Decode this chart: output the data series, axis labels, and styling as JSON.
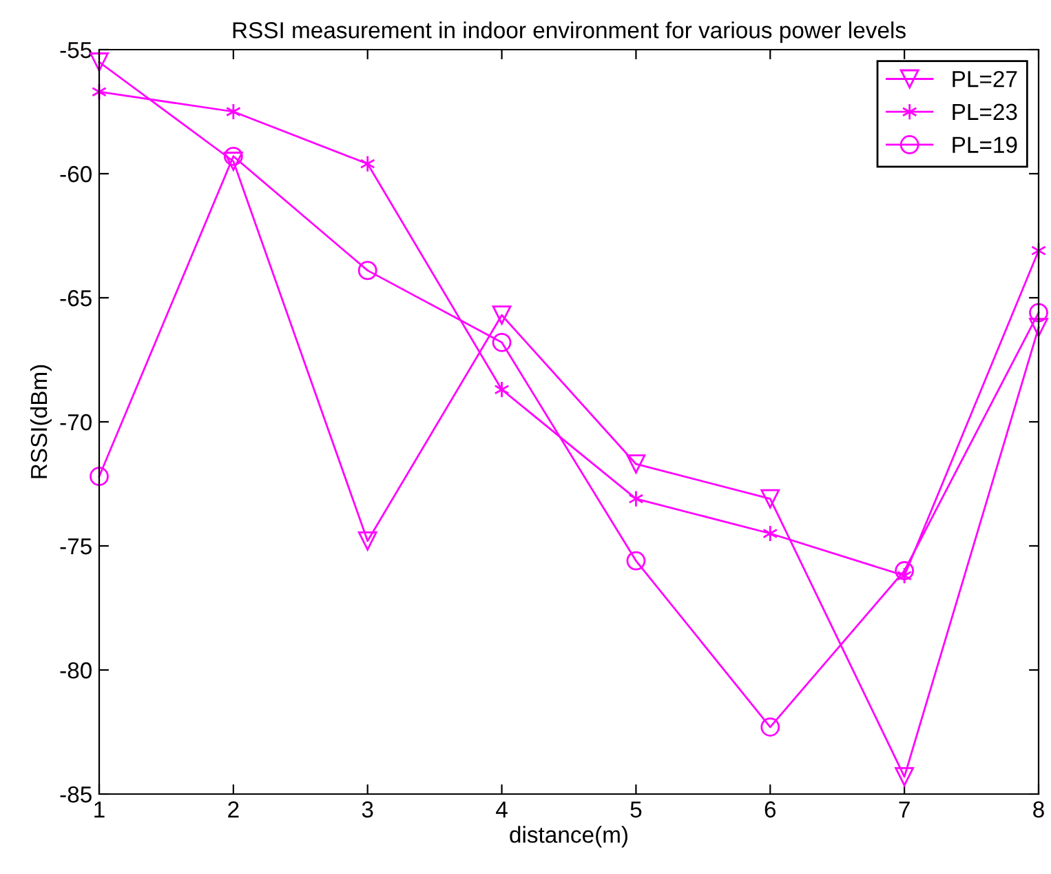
{
  "chart_data": {
    "type": "line",
    "title": "RSSI measurement in indoor environment for various power levels",
    "xlabel": "distance(m)",
    "ylabel": "RSSI(dBm)",
    "x": [
      1,
      2,
      3,
      4,
      5,
      6,
      7,
      8
    ],
    "xlim": [
      1,
      8
    ],
    "xticks": [
      1,
      2,
      3,
      4,
      5,
      6,
      7,
      8
    ],
    "ylim": [
      -85,
      -55
    ],
    "yticks": [
      -85,
      -80,
      -75,
      -70,
      -65,
      -60,
      -55
    ],
    "grid": false,
    "legend": "top right",
    "line_style": "solid",
    "series": [
      {
        "name": "PL=27",
        "color": "#ff00ff",
        "marker": "triangle",
        "values": [
          -55.5,
          -59.5,
          -74.8,
          -65.7,
          -71.7,
          -73.1,
          -84.3,
          -66.2
        ]
      },
      {
        "name": "PL=23",
        "color": "#ff00ff",
        "marker": "cross",
        "values": [
          -56.7,
          -57.5,
          -59.6,
          -68.7,
          -73.1,
          -74.5,
          -76.2,
          -63.1
        ]
      },
      {
        "name": "PL=19",
        "color": "#ff00ff",
        "marker": "circle",
        "values": [
          -72.2,
          -59.3,
          -63.9,
          -66.8,
          -75.6,
          -82.3,
          -76.0,
          -65.6
        ]
      }
    ]
  }
}
